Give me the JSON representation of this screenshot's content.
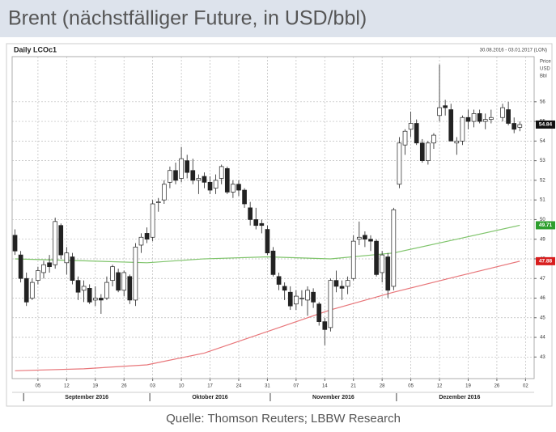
{
  "title": "Brent (nächstfälliger Future, in USD/bbl)",
  "source": "Quelle: Thomson Reuters; LBBW Research",
  "chart_data": {
    "type": "candlestick",
    "title": "Daily LCOc1",
    "subtitle": "30.08.2016 - 03.01.2017 (LON)",
    "y_axis_label": [
      "Price",
      "USD",
      "Bbl"
    ],
    "categories": [
      "2016-08-30",
      "2016-08-31",
      "2016-09-01",
      "2016-09-02",
      "2016-09-05",
      "2016-09-06",
      "2016-09-07",
      "2016-09-08",
      "2016-09-09",
      "2016-09-12",
      "2016-09-13",
      "2016-09-14",
      "2016-09-15",
      "2016-09-16",
      "2016-09-19",
      "2016-09-20",
      "2016-09-21",
      "2016-09-22",
      "2016-09-23",
      "2016-09-26",
      "2016-09-27",
      "2016-09-28",
      "2016-09-29",
      "2016-09-30",
      "2016-10-03",
      "2016-10-04",
      "2016-10-05",
      "2016-10-06",
      "2016-10-07",
      "2016-10-10",
      "2016-10-11",
      "2016-10-12",
      "2016-10-13",
      "2016-10-14",
      "2016-10-17",
      "2016-10-18",
      "2016-10-19",
      "2016-10-20",
      "2016-10-21",
      "2016-10-24",
      "2016-10-25",
      "2016-10-26",
      "2016-10-27",
      "2016-10-28",
      "2016-10-31",
      "2016-11-01",
      "2016-11-02",
      "2016-11-03",
      "2016-11-04",
      "2016-11-07",
      "2016-11-08",
      "2016-11-09",
      "2016-11-10",
      "2016-11-11",
      "2016-11-14",
      "2016-11-15",
      "2016-11-16",
      "2016-11-17",
      "2016-11-18",
      "2016-11-21",
      "2016-11-22",
      "2016-11-23",
      "2016-11-24",
      "2016-11-25",
      "2016-11-28",
      "2016-11-29",
      "2016-11-30",
      "2016-12-01",
      "2016-12-02",
      "2016-12-05",
      "2016-12-06",
      "2016-12-07",
      "2016-12-08",
      "2016-12-09",
      "2016-12-12",
      "2016-12-13",
      "2016-12-14",
      "2016-12-15",
      "2016-12-16",
      "2016-12-19",
      "2016-12-20",
      "2016-12-21",
      "2016-12-22",
      "2016-12-23",
      "2016-12-26",
      "2016-12-27",
      "2016-12-28",
      "2016-12-29",
      "2016-12-30",
      "2017-01-02",
      "2017-01-03"
    ],
    "open": [
      49.2,
      48.2,
      47.0,
      46.0,
      46.9,
      47.3,
      47.8,
      47.7,
      49.7,
      47.8,
      48.1,
      46.9,
      46.4,
      46.5,
      45.9,
      46.0,
      46.0,
      46.9,
      47.3,
      46.4,
      47.1,
      45.9,
      48.7,
      49.3,
      49.1,
      50.9,
      51.0,
      51.9,
      52.5,
      52.1,
      53.0,
      52.5,
      52.0,
      52.2,
      51.9,
      51.6,
      52.1,
      52.6,
      51.4,
      51.8,
      51.5,
      50.6,
      50.0,
      49.8,
      49.5,
      48.4,
      47.1,
      46.6,
      46.3,
      45.7,
      46.0,
      45.9,
      46.3,
      45.7,
      44.8,
      44.5,
      46.9,
      46.6,
      46.6,
      47.0,
      49.0,
      49.2,
      49.0,
      48.9,
      47.3,
      48.1,
      46.6,
      51.8,
      53.8,
      54.6,
      54.9,
      53.9,
      53.0,
      53.9,
      55.3,
      55.8,
      55.6,
      53.9,
      54.0,
      55.2,
      55.0,
      55.4,
      55.0,
      55.1,
      null,
      55.2,
      55.6,
      54.9,
      54.7,
      null,
      null
    ],
    "high": [
      49.5,
      48.4,
      47.3,
      47.0,
      47.6,
      47.9,
      48.2,
      50.1,
      49.8,
      48.6,
      48.3,
      47.1,
      46.9,
      46.7,
      46.6,
      46.2,
      47.1,
      47.7,
      47.5,
      47.4,
      47.2,
      48.8,
      49.3,
      49.6,
      51.0,
      51.1,
      52.0,
      52.7,
      52.9,
      53.7,
      53.3,
      53.1,
      52.3,
      52.4,
      52.2,
      52.3,
      52.8,
      52.7,
      52.0,
      52.0,
      51.6,
      50.9,
      50.6,
      50.0,
      49.7,
      48.6,
      47.3,
      46.8,
      46.6,
      46.4,
      46.4,
      46.6,
      46.5,
      45.8,
      45.0,
      47.0,
      47.4,
      46.9,
      47.1,
      49.2,
      49.9,
      49.4,
      49.2,
      49.0,
      48.4,
      48.3,
      50.6,
      54.2,
      54.6,
      55.5,
      55.1,
      54.1,
      54.0,
      54.4,
      57.9,
      56.1,
      55.9,
      54.2,
      55.3,
      55.6,
      55.6,
      55.6,
      55.4,
      55.6,
      null,
      55.9,
      56.0,
      55.2,
      55.0,
      null,
      null
    ],
    "low": [
      48.2,
      46.8,
      45.6,
      45.9,
      46.7,
      47.0,
      47.3,
      47.5,
      48.0,
      47.2,
      46.7,
      45.9,
      45.8,
      45.7,
      45.6,
      45.2,
      45.9,
      46.6,
      46.3,
      46.1,
      45.7,
      45.6,
      48.3,
      48.8,
      48.9,
      50.4,
      50.8,
      51.6,
      51.8,
      51.9,
      52.1,
      51.8,
      51.3,
      51.6,
      51.3,
      51.3,
      51.8,
      51.3,
      51.1,
      51.2,
      50.6,
      49.7,
      49.5,
      49.3,
      48.2,
      47.1,
      46.4,
      45.9,
      45.4,
      45.4,
      45.6,
      45.1,
      45.5,
      44.6,
      43.6,
      44.3,
      46.3,
      45.9,
      46.2,
      46.9,
      48.7,
      48.6,
      48.4,
      47.1,
      46.8,
      46.0,
      46.4,
      51.6,
      53.3,
      54.2,
      53.8,
      52.9,
      52.8,
      53.6,
      55.0,
      55.3,
      54.0,
      53.3,
      53.8,
      54.6,
      54.7,
      54.9,
      54.6,
      54.9,
      null,
      55.0,
      54.8,
      54.4,
      54.5,
      null,
      null
    ],
    "close": [
      48.4,
      47.0,
      45.8,
      46.8,
      47.4,
      47.7,
      47.6,
      49.9,
      48.2,
      48.3,
      46.9,
      46.3,
      46.6,
      45.8,
      46.0,
      45.9,
      46.8,
      47.6,
      46.4,
      47.3,
      45.9,
      48.6,
      49.1,
      49.0,
      50.8,
      50.9,
      51.8,
      52.5,
      52.0,
      53.1,
      52.4,
      52.0,
      52.1,
      51.9,
      51.5,
      52.0,
      52.7,
      51.4,
      51.8,
      51.5,
      50.8,
      50.0,
      49.7,
      49.7,
      48.3,
      47.2,
      46.7,
      46.4,
      45.6,
      46.1,
      46.0,
      46.4,
      45.8,
      44.8,
      44.4,
      46.9,
      46.6,
      46.5,
      46.9,
      48.9,
      49.1,
      49.0,
      48.9,
      47.2,
      48.2,
      46.4,
      50.5,
      53.9,
      54.5,
      54.9,
      53.9,
      53.0,
      53.9,
      54.3,
      55.7,
      55.7,
      54.0,
      54.0,
      55.2,
      55.0,
      55.4,
      55.0,
      55.1,
      55.2,
      null,
      55.7,
      54.9,
      54.6,
      54.84,
      null,
      null
    ],
    "series": [
      {
        "color": "#7fc46b",
        "x": [
          "2016-08-30",
          "2016-09-15",
          "2016-09-30",
          "2016-10-14",
          "2016-10-31",
          "2016-11-15",
          "2016-11-30",
          "2016-12-15",
          "2016-12-30"
        ],
        "values": [
          48.0,
          47.9,
          47.8,
          48.0,
          48.1,
          48.0,
          48.3,
          49.0,
          49.71
        ]
      },
      {
        "color": "#e8767a",
        "x": [
          "2016-08-30",
          "2016-09-15",
          "2016-09-30",
          "2016-10-14",
          "2016-10-31",
          "2016-11-15",
          "2016-11-30",
          "2016-12-15",
          "2016-12-30"
        ],
        "values": [
          42.3,
          42.4,
          42.6,
          43.2,
          44.3,
          45.4,
          46.3,
          47.1,
          47.88
        ]
      }
    ],
    "value_boxes": [
      {
        "value": 54.84,
        "label": "54.84",
        "color": "#111111"
      },
      {
        "value": 49.71,
        "label": "49.71",
        "color": "#2e9e2e"
      },
      {
        "value": 47.88,
        "label": "47.88",
        "color": "#d81e1e"
      }
    ],
    "ylim": [
      41.9,
      58.3
    ],
    "yticks": [
      43,
      44,
      45,
      46,
      47,
      48,
      49,
      50,
      51,
      52,
      53,
      54,
      55,
      56
    ],
    "xticks": [
      {
        "value": "2016-09-05",
        "label": "05"
      },
      {
        "value": "2016-09-12",
        "label": "12"
      },
      {
        "value": "2016-09-19",
        "label": "19"
      },
      {
        "value": "2016-09-26",
        "label": "26"
      },
      {
        "value": "2016-10-03",
        "label": "03"
      },
      {
        "value": "2016-10-10",
        "label": "10"
      },
      {
        "value": "2016-10-17",
        "label": "17"
      },
      {
        "value": "2016-10-24",
        "label": "24"
      },
      {
        "value": "2016-10-31",
        "label": "31"
      },
      {
        "value": "2016-11-07",
        "label": "07"
      },
      {
        "value": "2016-11-14",
        "label": "14"
      },
      {
        "value": "2016-11-21",
        "label": "21"
      },
      {
        "value": "2016-11-28",
        "label": "28"
      },
      {
        "value": "2016-12-05",
        "label": "05"
      },
      {
        "value": "2016-12-12",
        "label": "12"
      },
      {
        "value": "2016-12-19",
        "label": "19"
      },
      {
        "value": "2016-12-26",
        "label": "26"
      },
      {
        "value": "2017-01-02",
        "label": "02"
      }
    ],
    "month_labels": [
      {
        "value": "2016-09",
        "label": "September 2016"
      },
      {
        "value": "2016-10",
        "label": "Oktober 2016"
      },
      {
        "value": "2016-11",
        "label": "November 2016"
      },
      {
        "value": "2016-12",
        "label": "Dezember 2016"
      }
    ],
    "up_color": "#ffffff",
    "down_color": "#222222",
    "grid": true
  }
}
